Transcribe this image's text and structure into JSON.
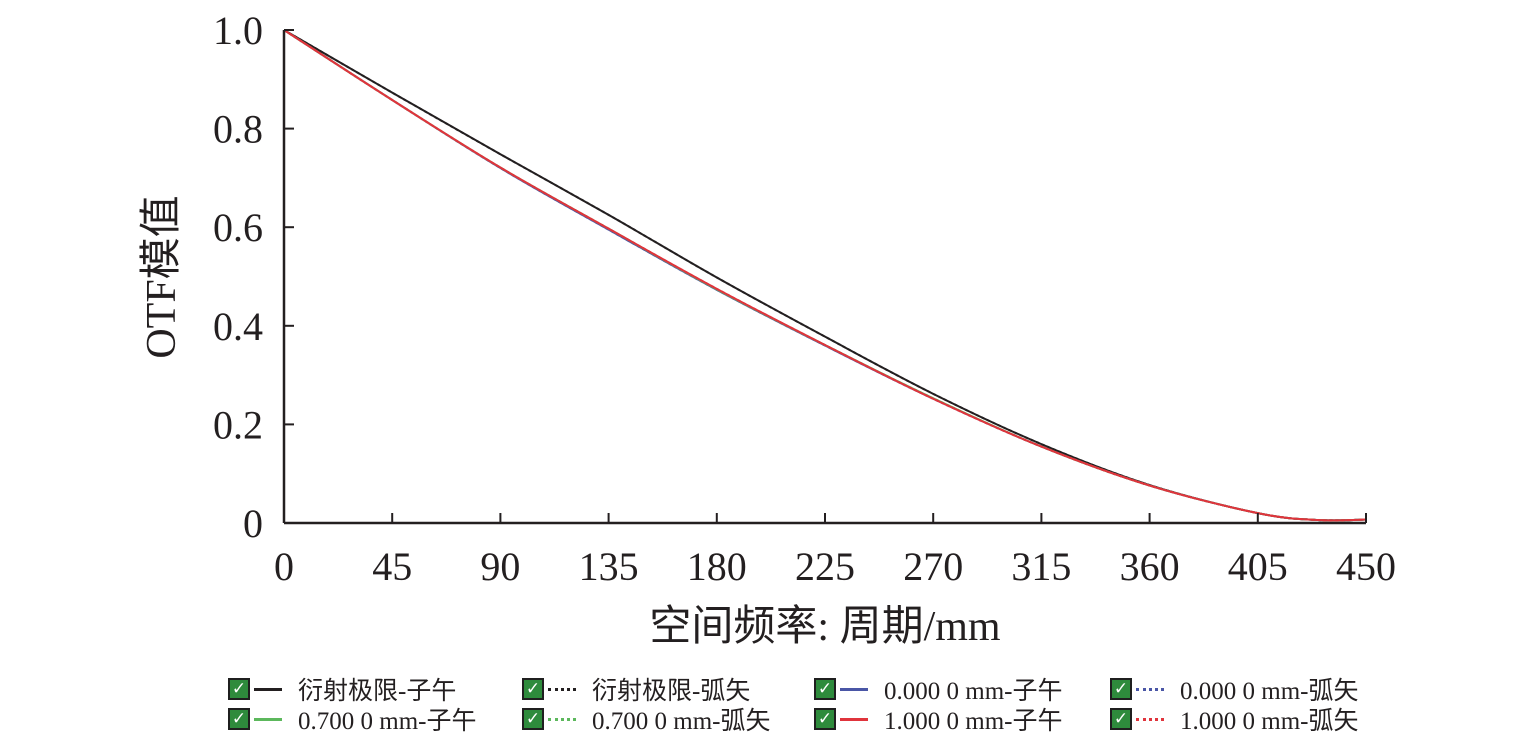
{
  "chart_data": {
    "type": "line",
    "xlabel": "空间频率: 周期/mm",
    "ylabel": "OTF模值",
    "xlim": [
      0,
      450
    ],
    "ylim": [
      0,
      1.0
    ],
    "x_ticks": [
      "0",
      "45",
      "90",
      "135",
      "180",
      "225",
      "270",
      "315",
      "360",
      "405",
      "450"
    ],
    "y_ticks": [
      "0",
      "0.2",
      "0.4",
      "0.6",
      "0.8",
      "1.0"
    ],
    "grid": false,
    "legend_position": "bottom",
    "x": [
      0,
      45,
      90,
      135,
      180,
      225,
      270,
      315,
      360,
      405,
      430,
      450
    ],
    "series": [
      {
        "name": "衍射极限-子午",
        "color": "#231f20",
        "style": "solid",
        "values": [
          1.0,
          0.873,
          0.748,
          0.625,
          0.498,
          0.378,
          0.262,
          0.16,
          0.077,
          0.02,
          0.006,
          0.007
        ]
      },
      {
        "name": "衍射极限-弧矢",
        "color": "#231f20",
        "style": "dotted",
        "values": [
          1.0,
          0.873,
          0.748,
          0.625,
          0.498,
          0.378,
          0.262,
          0.16,
          0.077,
          0.02,
          0.006,
          0.007
        ]
      },
      {
        "name": "0.000 0 mm-子午",
        "color": "#4a56a6",
        "style": "solid",
        "values": [
          1.0,
          0.858,
          0.72,
          0.595,
          0.473,
          0.36,
          0.252,
          0.155,
          0.076,
          0.02,
          0.006,
          0.007
        ]
      },
      {
        "name": "0.000 0 mm-弧矢",
        "color": "#4a56a6",
        "style": "dotted",
        "values": [
          1.0,
          0.858,
          0.72,
          0.595,
          0.473,
          0.36,
          0.252,
          0.155,
          0.076,
          0.02,
          0.006,
          0.007
        ]
      },
      {
        "name": "0.700 0 mm-子午",
        "color": "#5cb85c",
        "style": "solid",
        "values": [
          1.0,
          0.858,
          0.721,
          0.597,
          0.474,
          0.361,
          0.253,
          0.155,
          0.076,
          0.02,
          0.006,
          0.007
        ]
      },
      {
        "name": "0.700 0 mm-弧矢",
        "color": "#5cb85c",
        "style": "dotted",
        "values": [
          1.0,
          0.858,
          0.721,
          0.597,
          0.474,
          0.361,
          0.253,
          0.155,
          0.076,
          0.02,
          0.006,
          0.007
        ]
      },
      {
        "name": "1.000 0 mm-子午",
        "color": "#e0343c",
        "style": "solid",
        "values": [
          1.0,
          0.858,
          0.721,
          0.597,
          0.475,
          0.361,
          0.252,
          0.155,
          0.076,
          0.02,
          0.006,
          0.007
        ]
      },
      {
        "name": "1.000 0 mm-弧矢",
        "color": "#e0343c",
        "style": "dotted",
        "values": [
          1.0,
          0.858,
          0.721,
          0.597,
          0.475,
          0.361,
          0.252,
          0.155,
          0.076,
          0.02,
          0.006,
          0.007
        ]
      }
    ]
  }
}
